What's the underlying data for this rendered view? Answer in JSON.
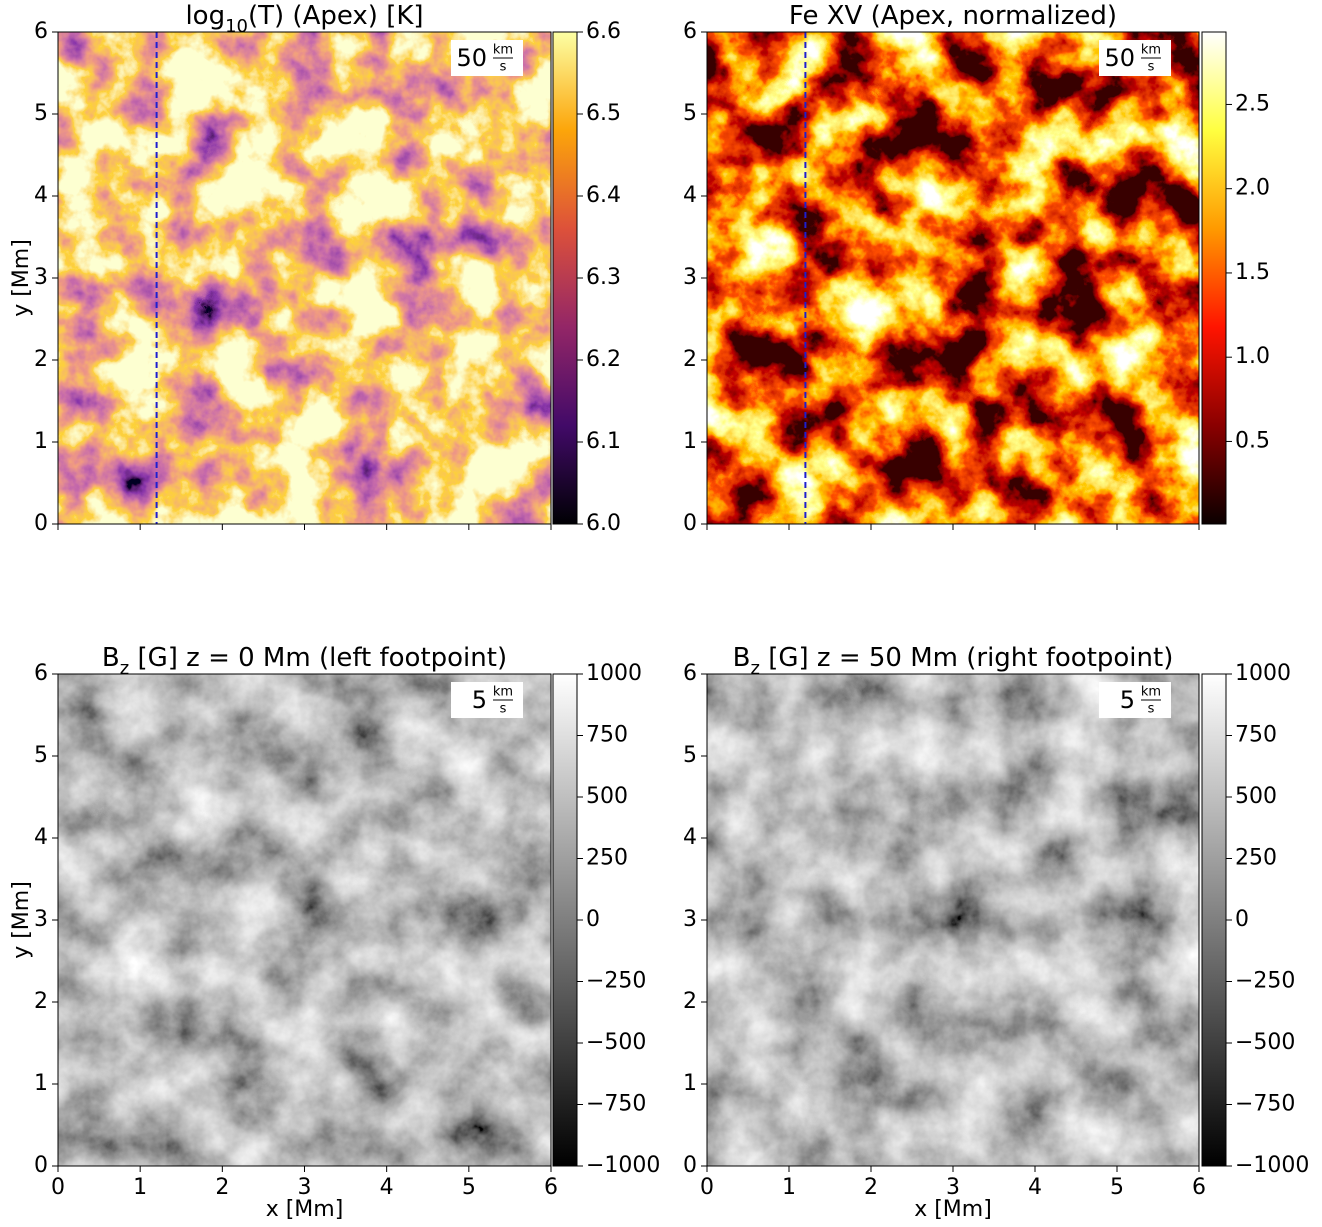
{
  "chart_data": [
    {
      "type": "heatmap",
      "title": [
        "log",
        "10",
        "(T) (Apex) [K]"
      ],
      "ylabel": "y [Mm]",
      "xlim": [
        0,
        6
      ],
      "ylim": [
        0,
        6
      ],
      "xticks": [
        0,
        1,
        2,
        3,
        4,
        5,
        6
      ],
      "yticks": [
        0,
        1,
        2,
        3,
        4,
        5,
        6
      ],
      "show_xticklabels": false,
      "colorbar_lim": [
        6.0,
        6.6
      ],
      "colorbar_ticks": [
        {
          "value": 6.0,
          "label": "6.0"
        },
        6.1,
        6.2,
        6.3,
        6.4,
        6.5,
        6.6
      ],
      "colormap": [
        "#000004",
        "#420a68",
        "#932667",
        "#dd513a",
        "#fca50a",
        "#fcffa4"
      ],
      "quiver_key": [
        "50",
        "km",
        "s"
      ],
      "vline_x": 1.2,
      "vline_color": "#1f1fd0"
    },
    {
      "type": "heatmap",
      "title": [
        "Fe XV (Apex, normalized)"
      ],
      "xlim": [
        0,
        6
      ],
      "ylim": [
        0,
        6
      ],
      "xticks": [
        0,
        1,
        2,
        3,
        4,
        5,
        6
      ],
      "yticks": [
        0,
        1,
        2,
        3,
        4,
        5,
        6
      ],
      "show_xticklabels": false,
      "colorbar_lim": [
        0.01,
        2.93
      ],
      "colorbar_ticks": [
        0.5,
        {
          "value": 1.0,
          "label": "1.0"
        },
        1.5,
        {
          "value": 2.0,
          "label": "2.0"
        },
        2.5
      ],
      "colormap": [
        "#0b0000",
        "#8a0000",
        "#ff1400",
        "#ff9a00",
        "#ffff40",
        "#ffffff"
      ],
      "quiver_key": [
        "50",
        "km",
        "s"
      ],
      "vline_x": 1.2,
      "vline_color": "#1f1fd0"
    },
    {
      "type": "heatmap",
      "title": [
        "B",
        "z",
        " [G] z = 0 Mm (left footpoint)"
      ],
      "xlabel": "x [Mm]",
      "ylabel": "y [Mm]",
      "xlim": [
        0,
        6
      ],
      "ylim": [
        0,
        6
      ],
      "xticks": [
        0,
        1,
        2,
        3,
        4,
        5,
        6
      ],
      "yticks": [
        0,
        1,
        2,
        3,
        4,
        5,
        6
      ],
      "show_xticklabels": true,
      "colorbar_lim": [
        -1000,
        1000
      ],
      "colorbar_ticks": [
        {
          "value": -1000,
          "label": "−1000"
        },
        {
          "value": -750,
          "label": "−750"
        },
        {
          "value": -500,
          "label": "−500"
        },
        {
          "value": -250,
          "label": "−250"
        },
        0,
        250,
        500,
        750,
        1000
      ],
      "colormap": [
        "#000000",
        "#ffffff"
      ],
      "quiver_key": [
        "5",
        "km",
        "s"
      ]
    },
    {
      "type": "heatmap",
      "title": [
        "B",
        "z",
        " [G] z = 50 Mm (right footpoint)"
      ],
      "xlabel": "x [Mm]",
      "xlim": [
        0,
        6
      ],
      "ylim": [
        0,
        6
      ],
      "xticks": [
        0,
        1,
        2,
        3,
        4,
        5,
        6
      ],
      "yticks": [
        0,
        1,
        2,
        3,
        4,
        5,
        6
      ],
      "show_xticklabels": true,
      "colorbar_lim": [
        -1000,
        1000
      ],
      "colorbar_ticks": [
        {
          "value": -1000,
          "label": "−1000"
        },
        {
          "value": -750,
          "label": "−750"
        },
        {
          "value": -500,
          "label": "−500"
        },
        {
          "value": -250,
          "label": "−250"
        },
        0,
        250,
        500,
        750,
        1000
      ],
      "colormap": [
        "#000000",
        "#ffffff"
      ],
      "quiver_key": [
        "5",
        "km",
        "s"
      ]
    }
  ]
}
